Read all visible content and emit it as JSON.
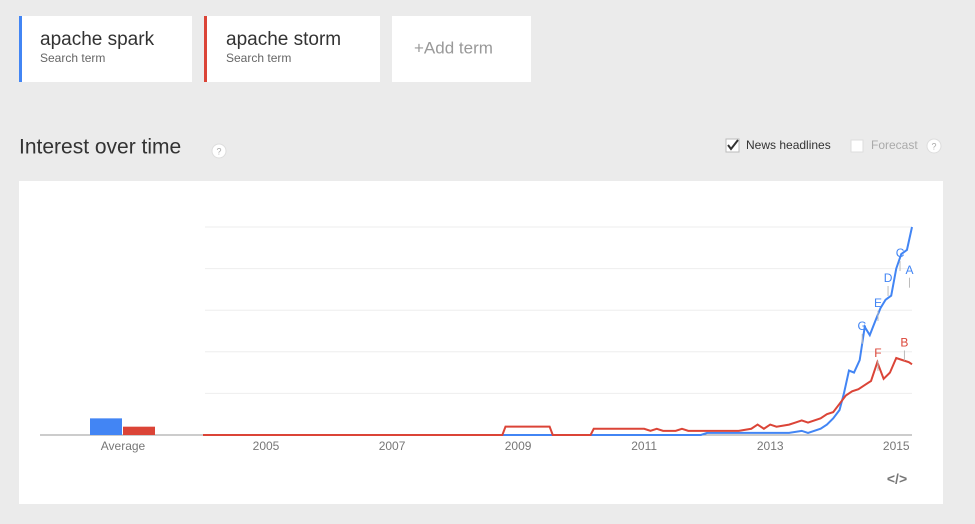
{
  "header": {
    "cards": [
      {
        "subtitle": "Search term"
      },
      {
        "subtitle": "Search term"
      }
    ],
    "add_term": "+Add term"
  },
  "section": {
    "title": "Interest over time",
    "help": "?",
    "news_headlines": "News headlines",
    "forecast": "Forecast",
    "forecast_help": "?",
    "embed": "</>"
  },
  "chart_data": {
    "type": "line",
    "xlim": [
      2004,
      2015.25
    ],
    "ylim": [
      0,
      100
    ],
    "xticks": [
      2005,
      2007,
      2009,
      2011,
      2013,
      2015
    ],
    "yticks": [
      20,
      40,
      60,
      80,
      100
    ],
    "grid": true,
    "average_label": "Average",
    "series": [
      {
        "name": "apache spark",
        "color": "#4285f4",
        "average": 8,
        "x": [
          2004,
          2011.9,
          2012,
          2013.3,
          2013.5,
          2013.6,
          2013.8,
          2013.9,
          2014,
          2014.1,
          2014.17,
          2014.25,
          2014.33,
          2014.42,
          2014.5,
          2014.58,
          2014.67,
          2014.75,
          2014.83,
          2014.92,
          2015,
          2015.08,
          2015.17,
          2015.25
        ],
        "values": [
          0,
          0,
          1,
          1,
          2,
          1,
          3,
          5,
          8,
          12,
          20,
          31,
          30,
          36,
          52,
          48,
          55,
          61,
          65,
          67,
          80,
          87,
          89,
          100
        ]
      },
      {
        "name": "apache storm",
        "color": "#db4437",
        "average": 4,
        "x": [
          2004,
          2008.75,
          2008.8,
          2009.5,
          2009.55,
          2010.15,
          2010.2,
          2011,
          2011.1,
          2011.2,
          2011.3,
          2011.5,
          2011.6,
          2011.7,
          2012,
          2012.5,
          2012.7,
          2012.8,
          2012.9,
          2013,
          2013.1,
          2013.3,
          2013.4,
          2013.5,
          2013.6,
          2013.8,
          2013.9,
          2014,
          2014.1,
          2014.2,
          2014.3,
          2014.4,
          2014.5,
          2014.6,
          2014.7,
          2014.8,
          2014.9,
          2015,
          2015.1,
          2015.2,
          2015.25
        ],
        "values": [
          0,
          0,
          4,
          4,
          0,
          0,
          3,
          3,
          2,
          3,
          2,
          2,
          3,
          2,
          2,
          2,
          3,
          5,
          3,
          5,
          4,
          5,
          6,
          7,
          6,
          8,
          10,
          11,
          15,
          19,
          21,
          22,
          24,
          26,
          35,
          27,
          30,
          37,
          36,
          35,
          34
        ]
      }
    ],
    "annotations": [
      {
        "label": "C",
        "series": 0,
        "x": 2015.06,
        "y": 87
      },
      {
        "label": "A",
        "series": 0,
        "x": 2015.21,
        "y": 79
      },
      {
        "label": "D",
        "series": 0,
        "x": 2014.87,
        "y": 75
      },
      {
        "label": "E",
        "series": 0,
        "x": 2014.71,
        "y": 63
      },
      {
        "label": "G",
        "series": 0,
        "x": 2014.46,
        "y": 52
      },
      {
        "label": "F",
        "series": 1,
        "x": 2014.71,
        "y": 39
      },
      {
        "label": "B",
        "series": 1,
        "x": 2015.13,
        "y": 44
      }
    ]
  }
}
